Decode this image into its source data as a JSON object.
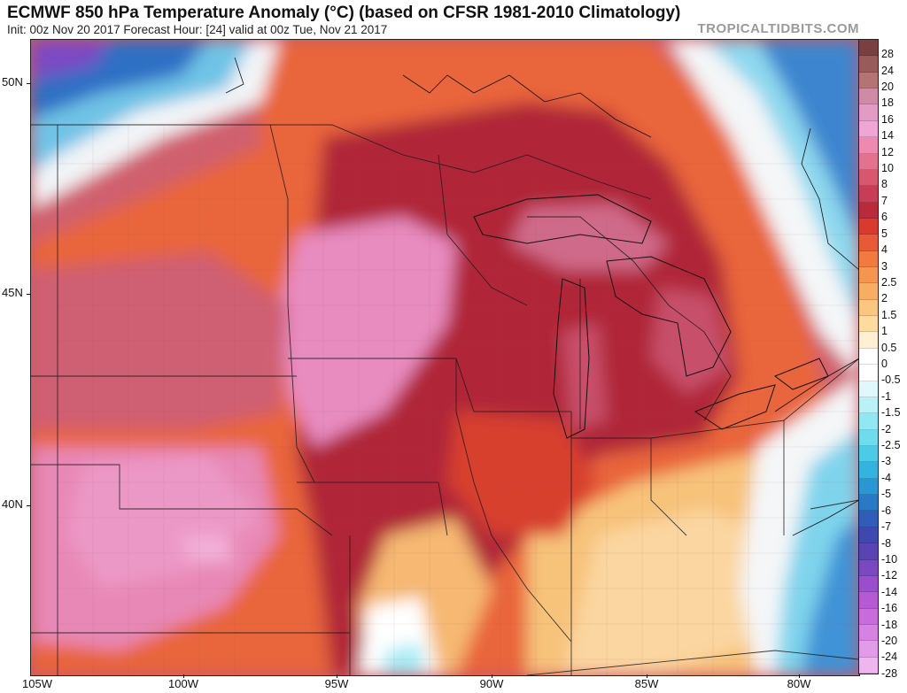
{
  "header": {
    "title": "ECMWF 850 hPa Temperature Anomaly (°C) (based on CFSR 1981-2010 Climatology)",
    "subtitle": "Init: 00z Nov 20 2017   Forecast Hour: [24]   valid at 00z Tue, Nov 21 2017",
    "credit": "TROPICALTIDBITS.COM"
  },
  "map": {
    "lat_labels": [
      "50N",
      "45N",
      "40N"
    ],
    "lon_labels": [
      "105W",
      "100W",
      "95W",
      "90W",
      "85W",
      "80W"
    ]
  },
  "colorbar": {
    "levels": [
      "28",
      "24",
      "20",
      "18",
      "16",
      "14",
      "12",
      "10",
      "8",
      "7",
      "6",
      "5",
      "4",
      "3",
      "2.5",
      "2",
      "1.5",
      "1",
      "0.5",
      "0",
      "-0.5",
      "-1",
      "-1.5",
      "-2",
      "-2.5",
      "-3",
      "-4",
      "-5",
      "-6",
      "-7",
      "-8",
      "-10",
      "-12",
      "-14",
      "-16",
      "-18",
      "-20",
      "-24",
      "-28"
    ],
    "colors": [
      "#7a3f3f",
      "#9a5a5a",
      "#b57474",
      "#cf8aa5",
      "#e39bc6",
      "#f0a6d4",
      "#ee89b0",
      "#e3728e",
      "#d8566e",
      "#c93c55",
      "#b92a3a",
      "#d93a2c",
      "#e65a35",
      "#f07a40",
      "#f59650",
      "#f8ae62",
      "#fbc67e",
      "#fddb9e",
      "#fff0d4",
      "#ffffff",
      "#ffffff",
      "#e0f8fb",
      "#b8f1f6",
      "#90e8f2",
      "#6edcec",
      "#4bcbe6",
      "#35b3df",
      "#2b96d4",
      "#2a79c6",
      "#2f5db8",
      "#3f48ac",
      "#5a44b3",
      "#7a48c0",
      "#9a4ecb",
      "#b65ad3",
      "#c96cdb",
      "#d682e2",
      "#e29be9",
      "#eeb5ef"
    ]
  }
}
